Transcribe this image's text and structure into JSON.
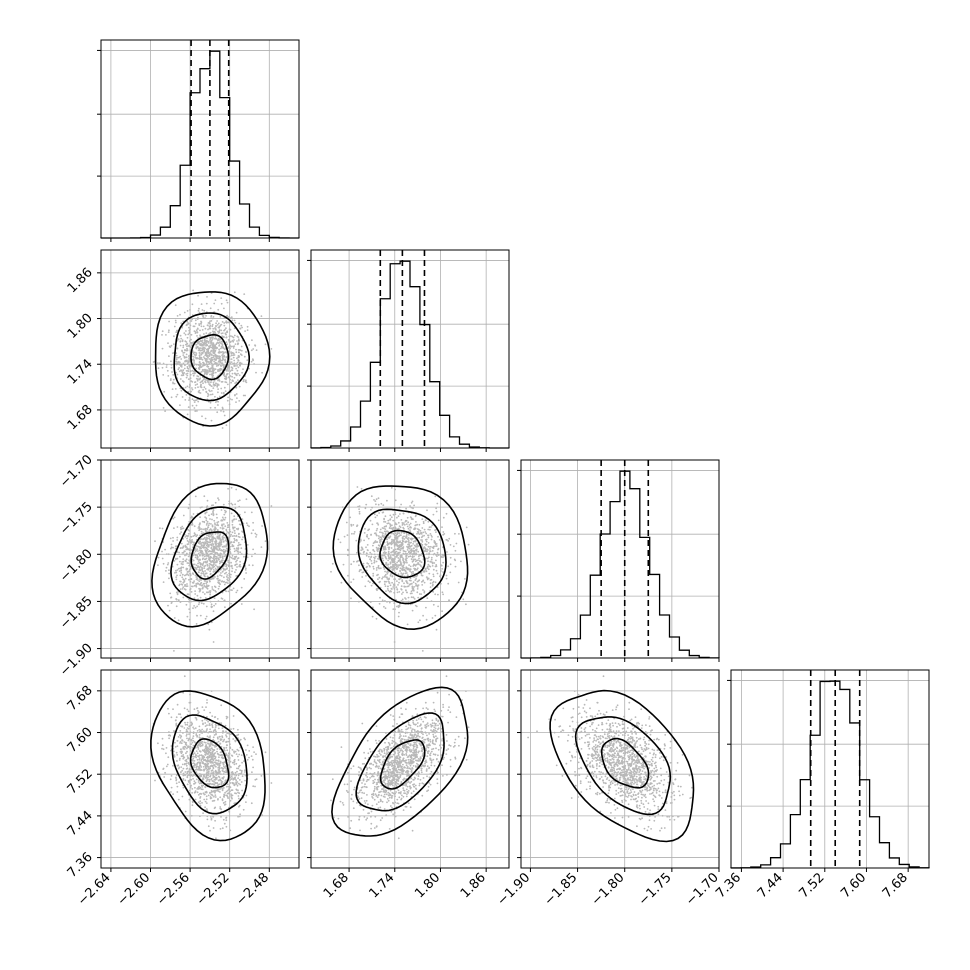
{
  "chart_data": {
    "type": "corner",
    "n_params": 4,
    "params": [
      {
        "range": [
          -2.65,
          -2.45
        ],
        "mean": -2.54,
        "std": 0.019,
        "quantiles": [
          -2.559,
          -2.54,
          -2.521
        ],
        "ticks": [
          -2.64,
          -2.6,
          -2.56,
          -2.52,
          -2.48
        ],
        "tick_labels": [
          "−2.64",
          "−2.60",
          "−2.56",
          "−2.52",
          "−2.48"
        ]
      },
      {
        "range": [
          1.63,
          1.89
        ],
        "mean": 1.75,
        "std": 0.029,
        "quantiles": [
          1.721,
          1.75,
          1.779
        ],
        "ticks": [
          1.68,
          1.74,
          1.8,
          1.86
        ],
        "tick_labels": [
          "1.68",
          "1.74",
          "1.80",
          "1.86"
        ]
      },
      {
        "range": [
          -1.91,
          -1.7
        ],
        "mean": -1.8,
        "std": 0.025,
        "quantiles": [
          -1.825,
          -1.8,
          -1.775
        ],
        "ticks": [
          -1.9,
          -1.85,
          -1.8,
          -1.75,
          -1.7
        ],
        "tick_labels": [
          "−1.90",
          "−1.85",
          "−1.80",
          "−1.75",
          "−1.70"
        ]
      },
      {
        "range": [
          7.34,
          7.72
        ],
        "mean": 7.54,
        "std": 0.047,
        "quantiles": [
          7.493,
          7.54,
          7.587
        ],
        "ticks": [
          7.36,
          7.44,
          7.52,
          7.6,
          7.68
        ],
        "tick_labels": [
          "7.36",
          "7.44",
          "7.52",
          "7.60",
          "7.68"
        ]
      }
    ],
    "correlations": [
      [
        1.0,
        0.0,
        0.28,
        -0.28
      ],
      [
        0.0,
        1.0,
        -0.15,
        0.55
      ],
      [
        0.28,
        -0.15,
        1.0,
        -0.45
      ],
      [
        -0.28,
        0.55,
        -0.45,
        1.0
      ]
    ],
    "diag_hist_ticks": [
      0.33,
      0.66,
      1.0
    ],
    "grid": true,
    "contour_levels": [
      0.39,
      0.86,
      0.99
    ]
  }
}
